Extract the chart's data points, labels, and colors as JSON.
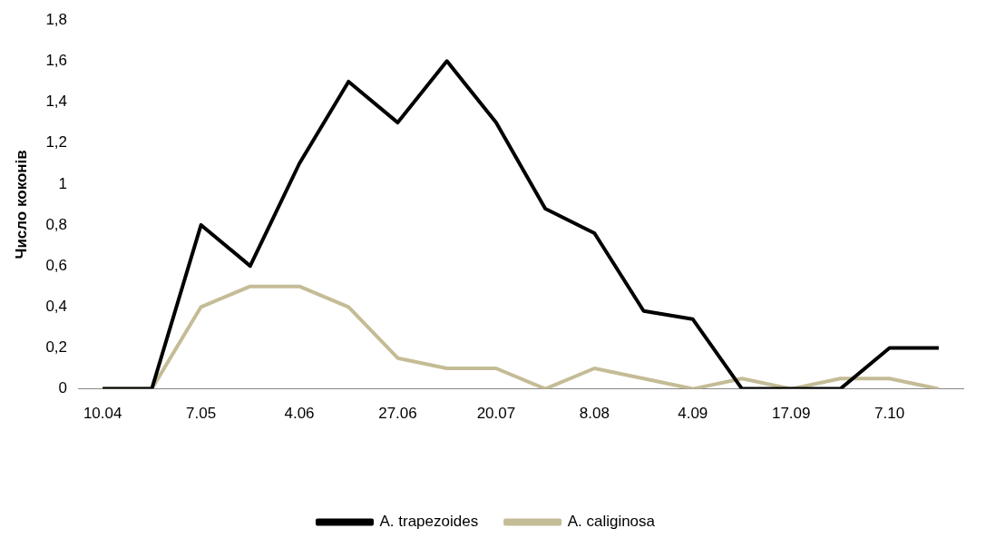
{
  "chart_data": {
    "type": "line",
    "ylabel": "Число коконів",
    "categories": [
      "10.04",
      null,
      "7.05",
      null,
      "4.06",
      null,
      "27.06",
      null,
      "20.07",
      null,
      "8.08",
      null,
      "4.09",
      null,
      "17.09",
      null,
      "7.10",
      null
    ],
    "series": [
      {
        "name": "A. trapezoides",
        "color": "#000000",
        "values": [
          0,
          0,
          0.8,
          0.6,
          1.1,
          1.5,
          1.3,
          1.6,
          1.3,
          0.88,
          0.76,
          0.38,
          0.34,
          0,
          0,
          0,
          0.2,
          0.2
        ]
      },
      {
        "name": "A. caliginosa",
        "color": "#c4bc96",
        "values": [
          0,
          0,
          0.4,
          0.5,
          0.5,
          0.4,
          0.15,
          0.1,
          0.1,
          0,
          0.1,
          0.05,
          0,
          0.05,
          0,
          0.05,
          0.05,
          0
        ]
      }
    ],
    "ylim": [
      0,
      1.8
    ],
    "yticks": [
      0,
      {
        "value": 0.2,
        "label": "0,2"
      },
      {
        "value": 0.4,
        "label": "0,4"
      },
      {
        "value": 0.6,
        "label": "0,6"
      },
      {
        "value": 0.8,
        "label": "0,8"
      },
      1,
      {
        "value": 1.2,
        "label": "1,2"
      },
      {
        "value": 1.4,
        "label": "1,4"
      },
      {
        "value": 1.6,
        "label": "1,6"
      },
      {
        "value": 1.8,
        "label": "1,8"
      }
    ],
    "grid": false,
    "legend": "bottom",
    "marker": "none",
    "line_style": "solid"
  }
}
